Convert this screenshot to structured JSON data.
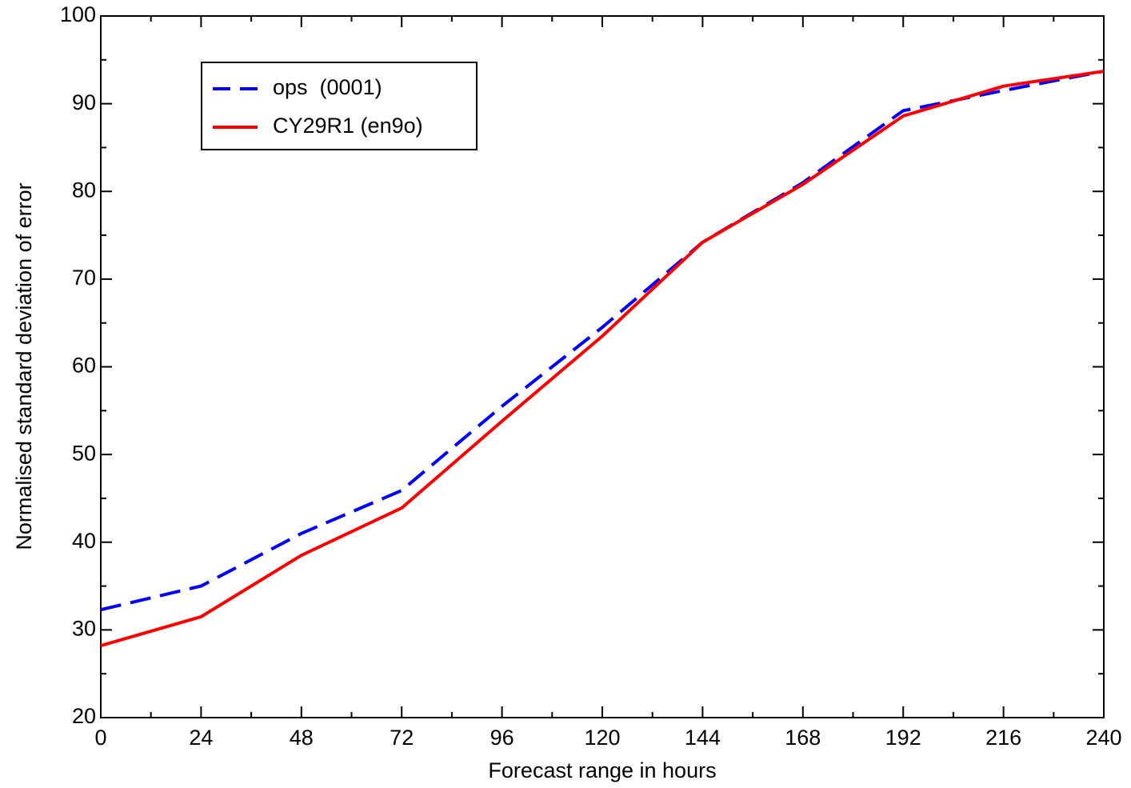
{
  "chart_data": {
    "type": "line",
    "x_label": "Forecast range in hours",
    "y_label": "Normalised standard deviation of error",
    "x": [
      0,
      24,
      48,
      72,
      96,
      120,
      144,
      168,
      192,
      216,
      240
    ],
    "series": [
      {
        "name": "ops  (0001)",
        "color": "#0000ff",
        "dashed": true,
        "values": [
          32.3,
          35.0,
          41.0,
          45.9,
          55.5,
          64.5,
          74.2,
          81.0,
          89.2,
          91.5,
          93.7
        ]
      },
      {
        "name": "CY29R1 (en9o)",
        "color": "#ff0000",
        "dashed": false,
        "values": [
          28.2,
          31.5,
          38.5,
          43.9,
          53.8,
          63.5,
          74.2,
          80.8,
          88.6,
          92.0,
          93.7
        ]
      }
    ],
    "xlim": [
      0,
      240
    ],
    "xticks": [
      0,
      24,
      48,
      72,
      96,
      120,
      144,
      168,
      192,
      216,
      240
    ],
    "ylim": [
      20,
      100
    ],
    "yticks": [
      20,
      30,
      40,
      50,
      60,
      70,
      80,
      90,
      100
    ],
    "grid": false,
    "legend": "upper left"
  }
}
